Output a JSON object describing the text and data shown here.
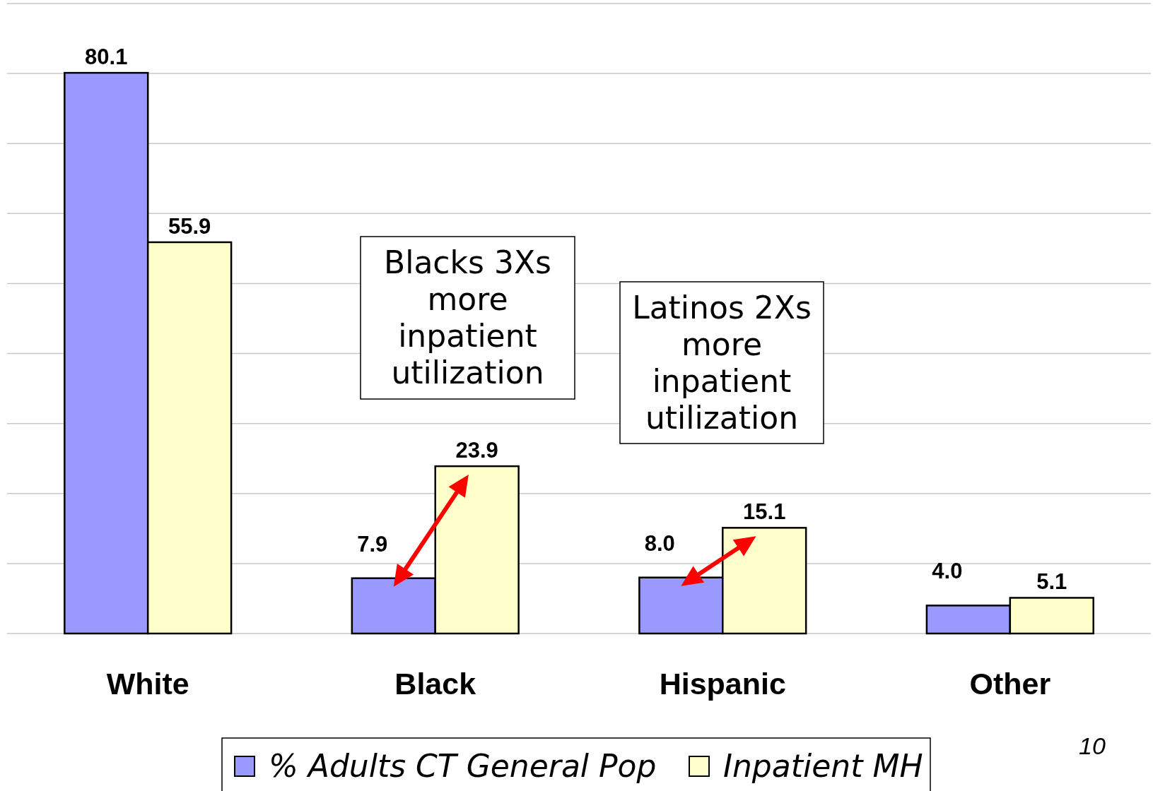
{
  "chart_data": {
    "type": "bar",
    "categories": [
      "White",
      "Black",
      "Hispanic",
      "Other"
    ],
    "series": [
      {
        "name": "% Adults CT General Pop",
        "color": "#9999ff",
        "values": [
          80.1,
          7.9,
          8.0,
          4.0
        ],
        "value_labels": [
          "80.1",
          "7.9",
          "8.0",
          "4.0"
        ]
      },
      {
        "name": "Inpatient MH",
        "color": "#ffffcc",
        "values": [
          55.9,
          23.9,
          15.1,
          5.1
        ],
        "value_labels": [
          "55.9",
          "23.9",
          "15.1",
          "5.1"
        ]
      }
    ],
    "ylim": [
      0,
      90
    ],
    "yticks": [
      {
        "value": 0,
        "label": null
      },
      {
        "value": 10,
        "label": null
      },
      {
        "value": 20,
        "label": null
      },
      {
        "value": 30,
        "label": null
      },
      {
        "value": 40,
        "label": null
      },
      {
        "value": 50,
        "label": null
      },
      {
        "value": 60,
        "label": null
      },
      {
        "value": 70,
        "label": null
      },
      {
        "value": 80,
        "label": null
      },
      {
        "value": 90,
        "label": null
      }
    ],
    "tick_labels": "x",
    "grid": "y",
    "legend": "bottom",
    "annotations": [
      "Blacks 3Xs more inpatient utilization",
      "Latinos 2Xs more inpatient utilization",
      "10"
    ]
  }
}
